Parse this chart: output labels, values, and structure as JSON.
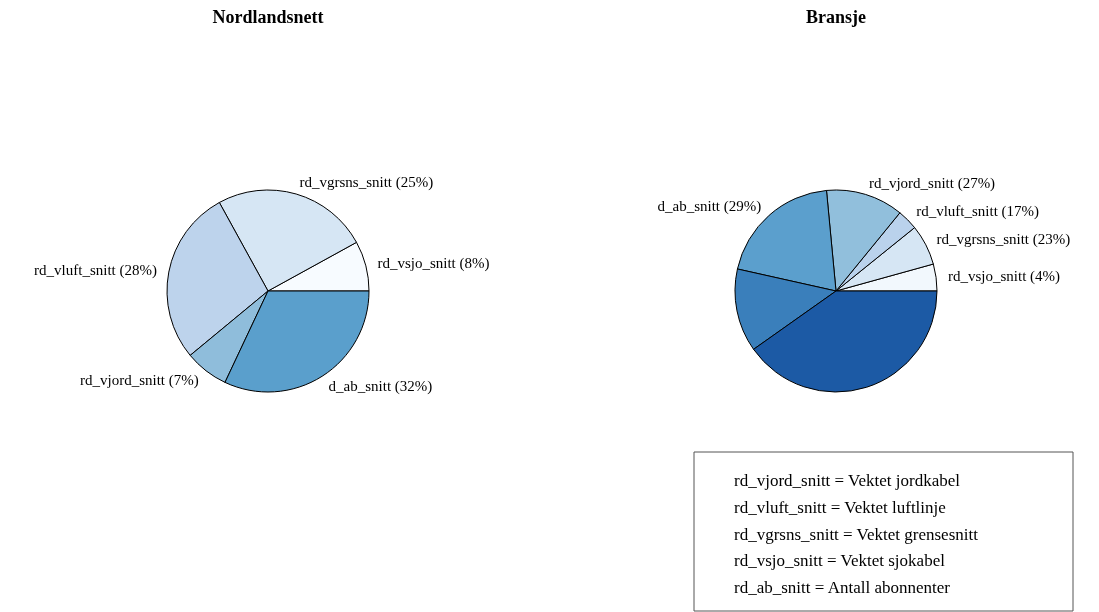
{
  "chart_data": [
    {
      "type": "pie",
      "title": "Nordlandsnett",
      "categories": [
        "rd_vsjo_snitt (8%)",
        "rd_vgrsns_snitt (25%)",
        "rd_vluft_snitt (28%)",
        "rd_vjord_snitt (7%)",
        "d_ab_snitt (32%)"
      ],
      "values": [
        8,
        25,
        28,
        7,
        32
      ],
      "colors": [
        "#f7fbff",
        "#d6e6f4",
        "#bdd3ec",
        "#8fbddb",
        "#5a9fcc"
      ]
    },
    {
      "type": "pie",
      "title": "Bransje",
      "categories": [
        "rd_vsjo_snitt (4%)",
        "rd_vgrsns_snitt (23%)",
        "rd_vluft_snitt (17%)",
        "rd_vjord_snitt (27%)",
        "d_ab_snitt (29%)",
        null,
        null
      ],
      "values": [
        4.3,
        6.5,
        3.3,
        12.4,
        20.0,
        13.3,
        40.2
      ],
      "colors": [
        "#f2f8fd",
        "#d6e6f4",
        "#bad2ec",
        "#91bfdc",
        "#5b9fcd",
        "#3a7fbb",
        "#1c5aa5"
      ],
      "annotations": [
        "rd_vjord_snitt = Vektet jordkabel",
        "rd_vluft_snitt = Vektet luftlinje",
        "rd_vgrsns_snitt = Vektet grensesnitt",
        "rd_vsjo_snitt = Vektet sjokabel",
        "rd_ab_snitt = Antall abonnenter"
      ]
    }
  ]
}
